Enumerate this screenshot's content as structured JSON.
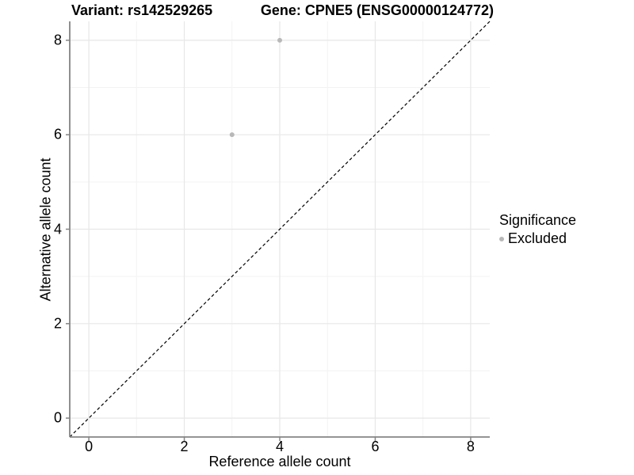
{
  "title": {
    "variant": "Variant: rs142529265",
    "gene": "Gene: CPNE5 (ENSG00000124772)"
  },
  "chart_data": {
    "type": "scatter",
    "title_left": "Variant: rs142529265",
    "title_right": "Gene: CPNE5 (ENSG00000124772)",
    "xlabel": "Reference allele count",
    "ylabel": "Alternative allele count",
    "xlim": [
      -0.4,
      8.4
    ],
    "ylim": [
      -0.4,
      8.4
    ],
    "xticks": [
      0,
      2,
      4,
      6,
      8
    ],
    "yticks": [
      0,
      2,
      4,
      6,
      8
    ],
    "grid": "major and minor gridlines on",
    "points": [
      {
        "x": 4,
        "y": 8,
        "series": "Excluded"
      },
      {
        "x": 3,
        "y": 6,
        "series": "Excluded"
      }
    ],
    "identity_line": {
      "style": "dashed",
      "from": [
        -0.4,
        -0.4
      ],
      "to": [
        8.4,
        8.4
      ]
    },
    "legend": {
      "position": "right",
      "title": "Significance",
      "items": [
        {
          "label": "Excluded",
          "color": "#b8b8b8"
        }
      ]
    }
  },
  "colors": {
    "background": "#ffffff",
    "point": "#b8b8b8",
    "axis_line": "#848484",
    "grid_major": "#e7e7e7",
    "grid_minor": "#f3f3f3",
    "dashed_line": "#000000",
    "text": "#000000"
  }
}
